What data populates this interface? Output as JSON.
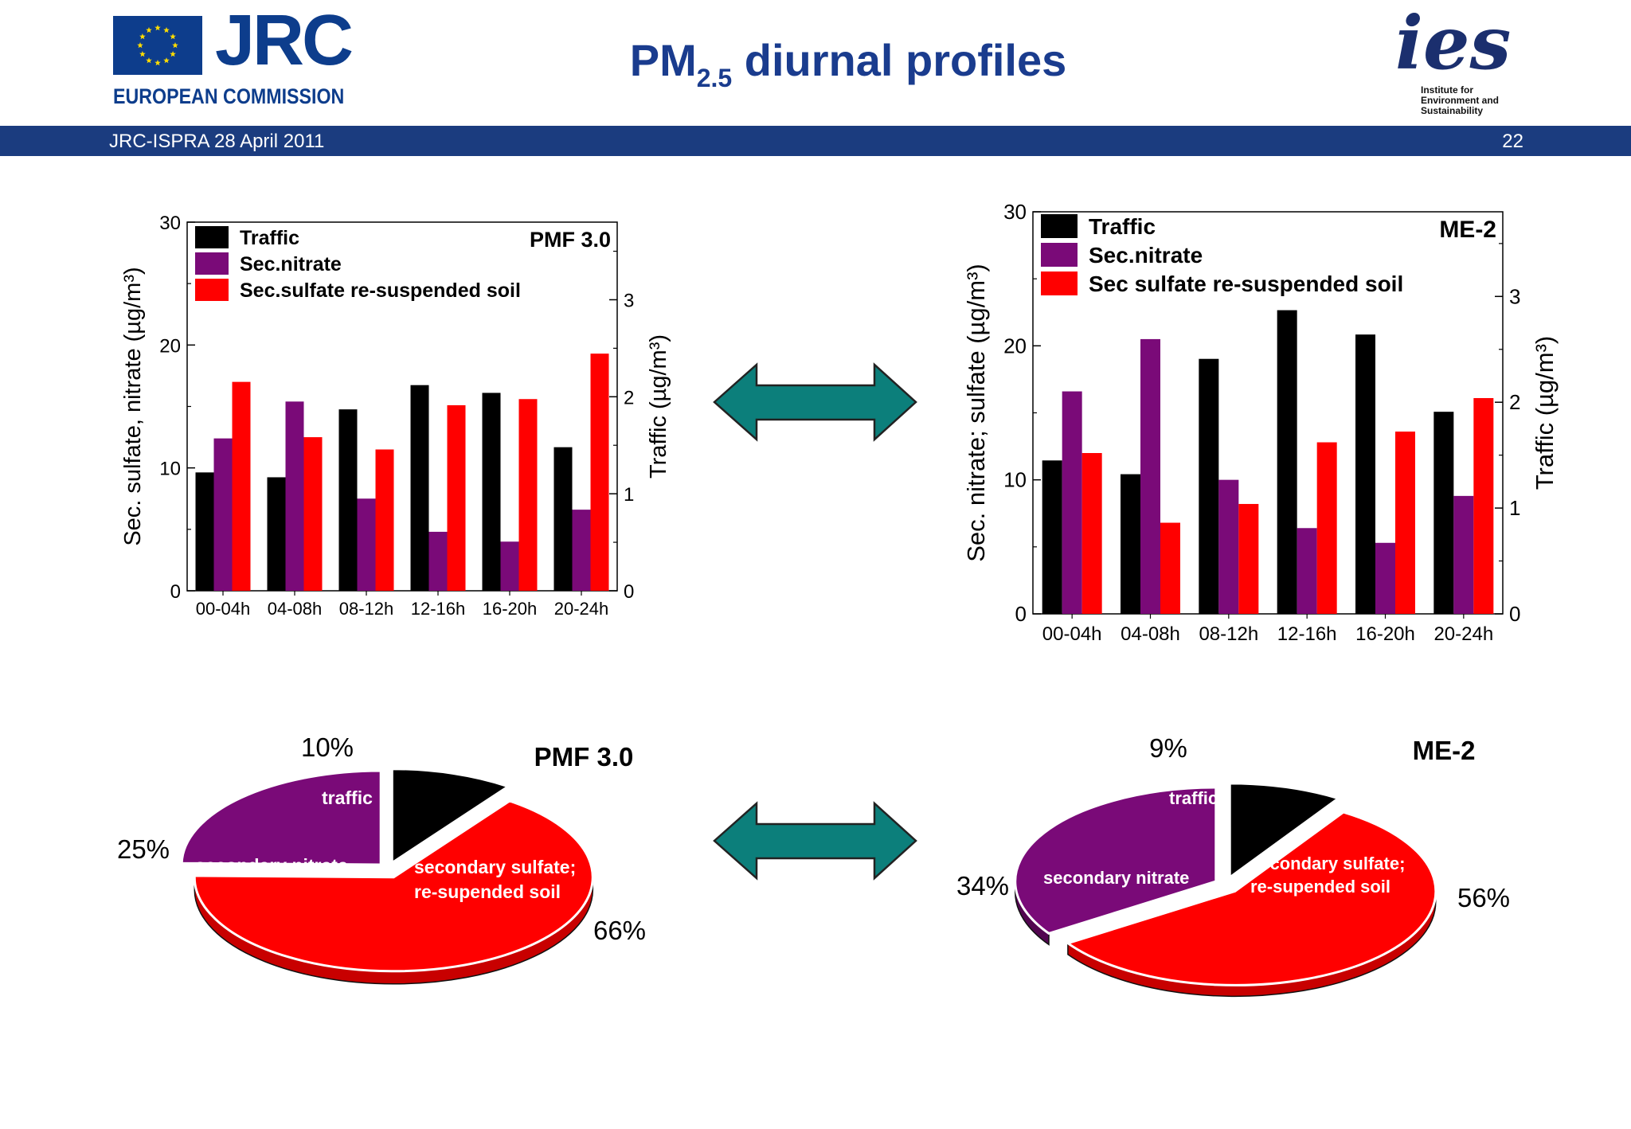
{
  "header": {
    "org_name": "JRC",
    "org_subtitle": "EUROPEAN COMMISSION",
    "title_main": "PM",
    "title_sub": "2.5",
    "title_rest": " diurnal profiles",
    "ies_mark": "ies",
    "ies_line1": "Institute for",
    "ies_line2": "Environment and",
    "ies_line3": "Sustainability"
  },
  "banner": {
    "left_text": "JRC-ISPRA 28 April 2011",
    "page_number": "22"
  },
  "colors": {
    "traffic": "#000000",
    "nitrate": "#7a0a78",
    "sulfate": "#ff0000",
    "arrow": "#0c7f7b",
    "brand_blue": "#1b3c7f"
  },
  "chart_data": [
    {
      "type": "bar",
      "panel_label": "PMF 3.0",
      "categories": [
        "00-04h",
        "04-08h",
        "08-12h",
        "12-16h",
        "16-20h",
        "20-24h"
      ],
      "ylabel": "Sec. sulfate, nitrate (µg/m³)",
      "y2label": "Traffic (µg/m³)",
      "ylim": [
        0,
        30
      ],
      "yticks": [
        "0",
        "10",
        "20",
        "30"
      ],
      "y2lim": [
        0,
        3.8
      ],
      "y2ticks": [
        "0",
        "1",
        "2",
        "3"
      ],
      "legend_position": "top-left",
      "series": [
        {
          "name": "Traffic",
          "axis": "right",
          "values": [
            1.22,
            1.17,
            1.87,
            2.12,
            2.04,
            1.48
          ]
        },
        {
          "name": "Sec.nitrate",
          "axis": "left",
          "values": [
            12.4,
            15.4,
            7.5,
            4.8,
            4.0,
            6.6
          ]
        },
        {
          "name": "Sec.sulfate re-suspended soil",
          "axis": "left",
          "values": [
            17.0,
            12.5,
            11.5,
            15.1,
            15.6,
            19.3
          ]
        }
      ]
    },
    {
      "type": "bar",
      "panel_label": "ME-2",
      "categories": [
        "00-04h",
        "04-08h",
        "08-12h",
        "12-16h",
        "16-20h",
        "20-24h"
      ],
      "ylabel": "Sec. nitrate; sulfate (µg/m³)",
      "y2label": "Traffic (µg/m³)",
      "ylim": [
        0,
        30
      ],
      "yticks": [
        "0",
        "10",
        "20",
        "30"
      ],
      "y2lim": [
        0,
        3.8
      ],
      "y2ticks": [
        "0",
        "1",
        "2",
        "3"
      ],
      "legend_position": "top-left",
      "series": [
        {
          "name": "Traffic",
          "axis": "right",
          "values": [
            1.45,
            1.32,
            2.41,
            2.87,
            2.64,
            1.91
          ]
        },
        {
          "name": "Sec.nitrate",
          "axis": "left",
          "values": [
            16.6,
            20.5,
            10.0,
            6.4,
            5.3,
            8.8
          ]
        },
        {
          "name": "Sec sulfate re-suspended soil",
          "axis": "left",
          "values": [
            12.0,
            6.8,
            8.2,
            12.8,
            13.6,
            16.1
          ]
        }
      ]
    },
    {
      "type": "pie",
      "panel_label": "PMF 3.0",
      "slices": [
        {
          "label": "traffic",
          "value": 10,
          "percent_label": "10%"
        },
        {
          "label_lines": [
            "secondary sulfate;",
            "re-supended soil"
          ],
          "value": 66,
          "percent_label": "66%"
        },
        {
          "label": "secondary nitrate",
          "value": 25,
          "percent_label": "25%"
        }
      ]
    },
    {
      "type": "pie",
      "panel_label": "ME-2",
      "slices": [
        {
          "label": "traffic",
          "value": 9,
          "percent_label": "9%"
        },
        {
          "label_lines": [
            "secondary sulfate;",
            "re-supended soil"
          ],
          "value": 56,
          "percent_label": "56%"
        },
        {
          "label": "secondary nitrate",
          "value": 34,
          "percent_label": "34%"
        }
      ]
    }
  ]
}
